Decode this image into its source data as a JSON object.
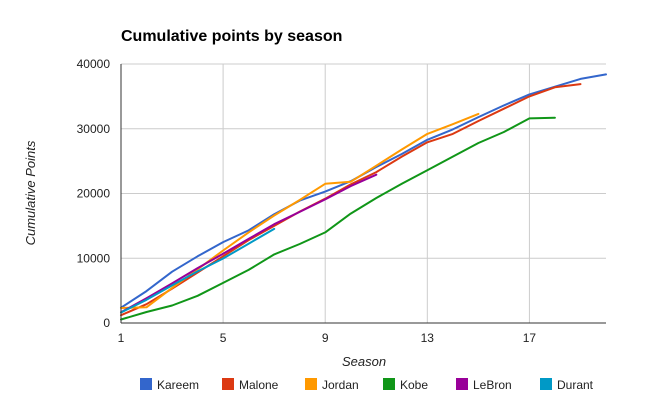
{
  "chart_data": {
    "type": "line",
    "title": "Cumulative points by season",
    "xlabel": "Season",
    "ylabel": "Cumulative Points",
    "xlim": [
      1,
      20
    ],
    "ylim": [
      0,
      40000
    ],
    "x_ticks": [
      1,
      5,
      9,
      13,
      17
    ],
    "y_ticks": [
      0,
      10000,
      20000,
      30000,
      40000
    ],
    "grid": true,
    "legend_position": "bottom",
    "series": [
      {
        "name": "Kareem",
        "color": "#3366cc",
        "x": [
          1,
          2,
          3,
          4,
          5,
          6,
          7,
          8,
          9,
          10,
          11,
          12,
          13,
          14,
          15,
          16,
          17,
          18,
          19,
          20
        ],
        "y": [
          2361,
          4930,
          7930,
          10300,
          12500,
          14300,
          16800,
          18900,
          20300,
          21900,
          24100,
          26100,
          28300,
          29900,
          31800,
          33600,
          35300,
          36500,
          37700,
          38400
        ]
      },
      {
        "name": "Malone",
        "color": "#dc3912",
        "x": [
          1,
          2,
          3,
          4,
          5,
          6,
          7,
          8,
          9,
          10,
          11,
          12,
          13,
          14,
          15,
          16,
          17,
          18,
          19
        ],
        "y": [
          1200,
          2900,
          5300,
          7800,
          10300,
          12800,
          15000,
          17200,
          19200,
          21400,
          23300,
          25700,
          27900,
          29200,
          31200,
          33100,
          35000,
          36400,
          36900
        ]
      },
      {
        "name": "Jordan",
        "color": "#ff9900",
        "x": [
          1,
          2,
          3,
          4,
          5,
          6,
          7,
          8,
          9,
          10,
          11,
          12,
          13,
          14,
          15
        ],
        "y": [
          2313,
          2420,
          5420,
          8300,
          11200,
          14000,
          16600,
          19000,
          21500,
          21800,
          24300,
          26800,
          29200,
          30700,
          32300
        ]
      },
      {
        "name": "Kobe",
        "color": "#109618",
        "x": [
          1,
          2,
          3,
          4,
          5,
          6,
          7,
          8,
          9,
          10,
          11,
          12,
          13,
          14,
          15,
          16,
          17,
          18
        ],
        "y": [
          539,
          1700,
          2700,
          4200,
          6200,
          8200,
          10600,
          12200,
          14000,
          16900,
          19300,
          21500,
          23600,
          25700,
          27800,
          29500,
          31600,
          31700
        ]
      },
      {
        "name": "LeBron",
        "color": "#990099",
        "x": [
          1,
          2,
          3,
          4,
          5,
          6,
          7,
          8,
          9,
          10,
          11
        ],
        "y": [
          1654,
          3829,
          6117,
          8477,
          10689,
          12993,
          15251,
          17162,
          19089,
          21138,
          22900
        ]
      },
      {
        "name": "Durant",
        "color": "#0099c6",
        "x": [
          1,
          2,
          3,
          4,
          5,
          6,
          7
        ],
        "y": [
          1624,
          3580,
          5810,
          7970,
          9960,
          12240,
          14540
        ]
      }
    ]
  }
}
